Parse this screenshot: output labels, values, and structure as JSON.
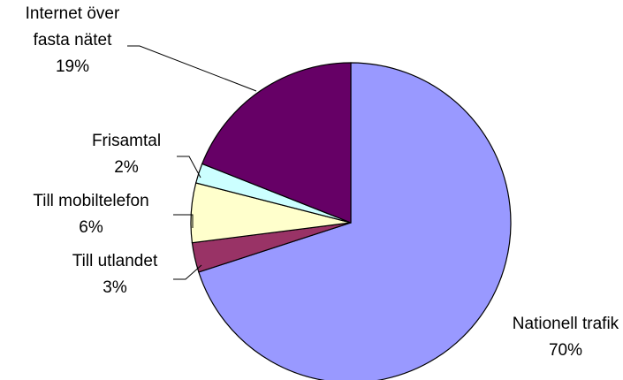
{
  "chart_data": {
    "type": "pie",
    "slices": [
      {
        "label_lines": [
          "Nationell trafik"
        ],
        "percent_label": "70%",
        "value": 70,
        "color": "#9999ff"
      },
      {
        "label_lines": [
          "Till utlandet"
        ],
        "percent_label": "3%",
        "value": 3,
        "color": "#993366"
      },
      {
        "label_lines": [
          "Till mobiltelefon"
        ],
        "percent_label": "6%",
        "value": 6,
        "color": "#ffffcc"
      },
      {
        "label_lines": [
          "Frisamtal"
        ],
        "percent_label": "2%",
        "value": 2,
        "color": "#ccffff"
      },
      {
        "label_lines": [
          "Internet över",
          "fasta nätet"
        ],
        "percent_label": "19%",
        "value": 19,
        "color": "#660066"
      }
    ],
    "start": "12 o'clock",
    "direction": "clockwise",
    "legend": "none",
    "slice_outline": "#000000"
  }
}
